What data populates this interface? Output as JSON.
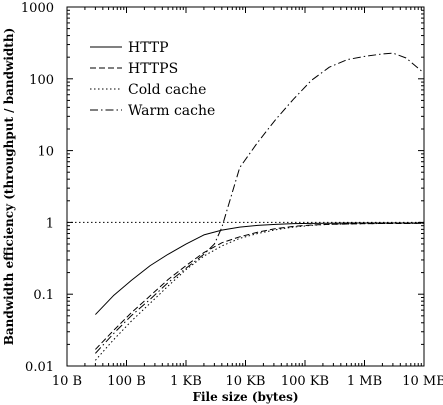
{
  "chart_data": {
    "type": "line",
    "xlabel": "File size (bytes)",
    "ylabel": "Bandwidth efficiency (throughput / bandwidth)",
    "x_scale": "log",
    "y_scale": "log",
    "xlim": [
      10,
      10000000
    ],
    "ylim": [
      0.01,
      1000
    ],
    "x_ticks": [
      10,
      100,
      1000,
      10000,
      100000,
      1000000,
      10000000
    ],
    "x_tick_labels": [
      "10 B",
      "100 B",
      "1 KB",
      "10 KB",
      "100 KB",
      "1 MB",
      "10 MB"
    ],
    "y_ticks": [
      0.01,
      0.1,
      1,
      10,
      100,
      1000
    ],
    "y_tick_labels": [
      "0.01",
      "0.1",
      "1",
      "10",
      "100",
      "1000"
    ],
    "grid": false,
    "legend_position": "top-left",
    "series": [
      {
        "name": "HTTP",
        "dash": "solid",
        "x": [
          30,
          60,
          120,
          250,
          500,
          1000,
          2000,
          4000,
          8000,
          16000,
          32000,
          64000,
          128000,
          256000,
          512000,
          1000000,
          2000000,
          4000000,
          10000000
        ],
        "y": [
          0.052,
          0.095,
          0.155,
          0.25,
          0.36,
          0.5,
          0.67,
          0.78,
          0.86,
          0.91,
          0.94,
          0.96,
          0.97,
          0.975,
          0.98,
          0.98,
          0.98,
          0.98,
          0.98
        ]
      },
      {
        "name": "HTTPS",
        "dash": "dashed",
        "x": [
          30,
          60,
          120,
          250,
          500,
          1000,
          2000,
          4000,
          8000,
          16000,
          32000,
          64000,
          128000,
          256000,
          512000,
          1000000,
          2000000,
          4000000,
          10000000
        ],
        "y": [
          0.017,
          0.031,
          0.055,
          0.095,
          0.16,
          0.25,
          0.38,
          0.52,
          0.63,
          0.73,
          0.82,
          0.88,
          0.92,
          0.94,
          0.95,
          0.96,
          0.965,
          0.965,
          0.97
        ]
      },
      {
        "name": "Cold cache",
        "dash": "dotted",
        "x": [
          30,
          60,
          120,
          250,
          500,
          1000,
          2000,
          4000,
          8000,
          16000,
          32000,
          64000,
          128000,
          256000,
          512000,
          1000000,
          2000000,
          4000000,
          10000000
        ],
        "y": [
          0.012,
          0.023,
          0.042,
          0.075,
          0.13,
          0.22,
          0.34,
          0.47,
          0.6,
          0.7,
          0.79,
          0.86,
          0.91,
          0.94,
          0.95,
          0.96,
          0.965,
          0.965,
          0.97
        ]
      },
      {
        "name": "Warm cache",
        "dash": "dashdot",
        "x": [
          30,
          60,
          120,
          250,
          500,
          1000,
          2000,
          3000,
          4000,
          8000,
          16000,
          32000,
          64000,
          128000,
          256000,
          512000,
          1000000,
          2000000,
          3000000,
          5000000,
          10000000
        ],
        "y": [
          0.015,
          0.028,
          0.05,
          0.085,
          0.145,
          0.23,
          0.36,
          0.5,
          0.85,
          5.8,
          13,
          27,
          52,
          95,
          145,
          185,
          205,
          222,
          228,
          195,
          120
        ]
      },
      {
        "name": "",
        "dash": "reference",
        "x": [
          10,
          10000000
        ],
        "y": [
          1,
          1
        ]
      }
    ]
  }
}
